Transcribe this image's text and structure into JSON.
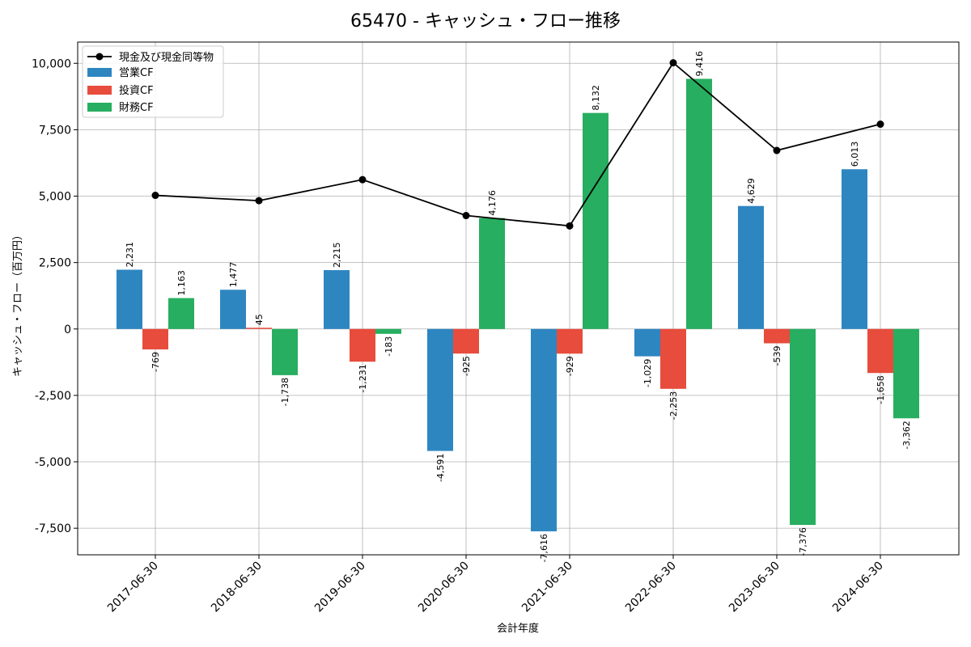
{
  "chart_data": {
    "type": "bar",
    "title": "65470 - キャッシュ・フロー推移",
    "xlabel": "会計年度",
    "ylabel": "キャッシュ・フロー（百万円）",
    "ylim": [
      -8500,
      10800
    ],
    "yticks": [
      -7500,
      -5000,
      -2500,
      0,
      2500,
      5000,
      7500,
      10000
    ],
    "ytick_labels": [
      "-7,500",
      "-5,000",
      "-2,500",
      "0",
      "2,500",
      "5,000",
      "7,500",
      "10,000"
    ],
    "grid": true,
    "legend_position": "top-left",
    "categories": [
      "2017-06-30",
      "2018-06-30",
      "2019-06-30",
      "2020-06-30",
      "2021-06-30",
      "2022-06-30",
      "2023-06-30",
      "2024-06-30"
    ],
    "series": [
      {
        "name": "営業CF",
        "kind": "bar",
        "color": "#2e86c1",
        "values": [
          2231,
          1477,
          2215,
          -4591,
          -7616,
          -1029,
          4629,
          6013
        ],
        "labels": [
          "2,231",
          "1,477",
          "2,215",
          "-4,591",
          "-7,616",
          "-1,029",
          "4,629",
          "6,013"
        ]
      },
      {
        "name": "投資CF",
        "kind": "bar",
        "color": "#e74c3c",
        "values": [
          -769,
          45,
          -1231,
          -925,
          -929,
          -2253,
          -539,
          -1658
        ],
        "labels": [
          "-769",
          "45",
          "-1,231",
          "-925",
          "-929",
          "-2,253",
          "-539",
          "-1,658"
        ]
      },
      {
        "name": "財務CF",
        "kind": "bar",
        "color": "#27ae60",
        "values": [
          1163,
          -1738,
          -183,
          4176,
          8132,
          9416,
          -7376,
          -3362
        ],
        "labels": [
          "1,163",
          "-1,738",
          "-183",
          "4,176",
          "8,132",
          "9,416",
          "-7,376",
          "-3,362"
        ]
      },
      {
        "name": "現金及び現金同等物",
        "kind": "line",
        "color": "#000000",
        "values": [
          5030,
          4830,
          5620,
          4270,
          3880,
          10020,
          6720,
          7710
        ]
      }
    ]
  }
}
